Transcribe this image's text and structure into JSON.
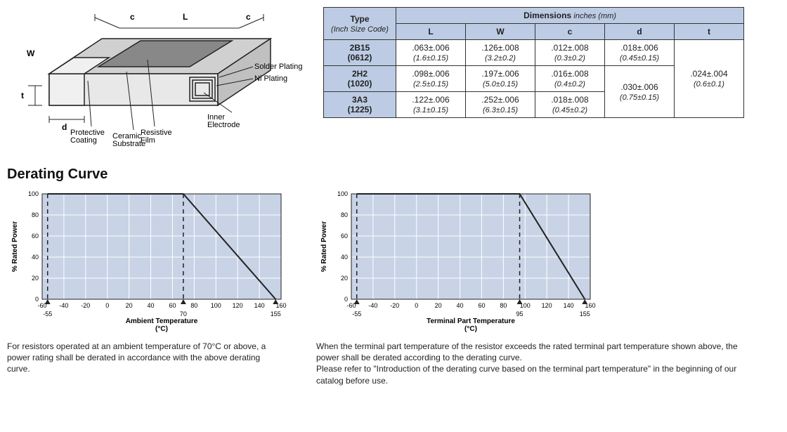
{
  "diagram": {
    "labels": {
      "L": "L",
      "W": "W",
      "c": "c",
      "d": "d",
      "t": "t",
      "solder": "Solder Plating",
      "ni": "Ni Plating",
      "inner": "Inner\nElectrode",
      "resistive": "Resistive\nFilm",
      "ceramic": "Ceramic\nSubstrate",
      "protective": "Protective\nCoating"
    },
    "colors": {
      "body": "#cccccc",
      "film": "#888888",
      "line": "#222222"
    }
  },
  "table": {
    "header_type": "Type",
    "header_type_sub": "(Inch Size Code)",
    "header_dims": "Dimensions",
    "header_dims_unit": "inches (mm)",
    "cols": [
      "L",
      "W",
      "c",
      "d",
      "t"
    ],
    "rows": [
      {
        "type": "2B15",
        "code": "(0612)",
        "L": ".063±.006",
        "L_mm": "(1.6±0.15)",
        "W": ".126±.008",
        "W_mm": "(3.2±0.2)",
        "c": ".012±.008",
        "c_mm": "(0.3±0.2)",
        "d": ".018±.006",
        "d_mm": "(0.45±0.15)"
      },
      {
        "type": "2H2",
        "code": "(1020)",
        "L": ".098±.006",
        "L_mm": "(2.5±0.15)",
        "W": ".197±.006",
        "W_mm": "(5.0±0.15)",
        "c": ".016±.008",
        "c_mm": "(0.4±0.2)"
      },
      {
        "type": "3A3",
        "code": "(1225)",
        "L": ".122±.006",
        "L_mm": "(3.1±0.15)",
        "W": ".252±.006",
        "W_mm": "(6.3±0.15)",
        "c": ".018±.008",
        "c_mm": "(0.45±0.2)"
      }
    ],
    "d_merge": {
      "val": ".030±.006",
      "mm": "(0.75±0.15)"
    },
    "t_merge": {
      "val": ".024±.004",
      "mm": "(0.6±0.1)"
    }
  },
  "section_title": "Derating Curve",
  "chart1": {
    "title": "Ambient Temperature\n(°C)",
    "ylabel": "% Rated Power",
    "xticks": [
      -60,
      -40,
      -20,
      0,
      20,
      40,
      60,
      80,
      100,
      120,
      140,
      160
    ],
    "yticks": [
      0,
      20,
      40,
      60,
      80,
      100
    ],
    "xlim": [
      -60,
      160
    ],
    "ylim": [
      0,
      100
    ],
    "markers_x": [
      -55,
      70,
      155
    ],
    "dashed_x": [
      -55,
      70
    ],
    "line": [
      [
        -55,
        100
      ],
      [
        70,
        100
      ],
      [
        155,
        0
      ]
    ],
    "caption": "For resistors operated at an ambient temperature of 70°C or above, a power rating shall be derated in accordance with the above derating curve.",
    "bg": "#c8d3e6",
    "grid": "#ffffff",
    "line_color": "#222222"
  },
  "chart2": {
    "title": "Terminal Part Temperature\n(°C)",
    "ylabel": "% Rated Power",
    "xticks": [
      -60,
      -40,
      -20,
      0,
      20,
      40,
      60,
      80,
      100,
      120,
      140,
      160
    ],
    "yticks": [
      0,
      20,
      40,
      60,
      80,
      100
    ],
    "xlim": [
      -60,
      160
    ],
    "ylim": [
      0,
      100
    ],
    "markers_x": [
      -55,
      95,
      155
    ],
    "dashed_x": [
      -55,
      95
    ],
    "line": [
      [
        -55,
        100
      ],
      [
        95,
        100
      ],
      [
        155,
        0
      ]
    ],
    "caption": "When the terminal part temperature of the resistor exceeds the rated terminal part temperature shown above, the power shall be derated according to the derating curve.\nPlease refer to \"Introduction of the derating curve based on the terminal part temperature\" in the beginning of our catalog before use.",
    "bg": "#c8d3e6",
    "grid": "#ffffff",
    "line_color": "#222222"
  }
}
